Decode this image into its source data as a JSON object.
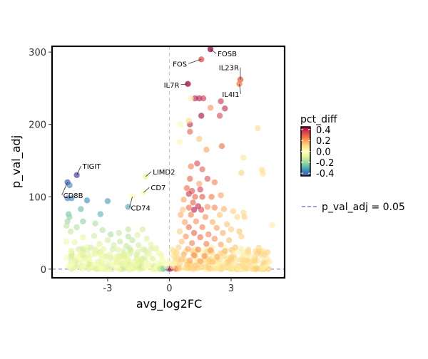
{
  "chart_data": {
    "type": "scatter",
    "title": "",
    "xlabel": "avg_log2FC",
    "ylabel": "p_val_adj",
    "xlim": [
      -5.7,
      5.6
    ],
    "ylim": [
      -12,
      308
    ],
    "xticks": [
      -3,
      0,
      3
    ],
    "xtick_labels": [
      "-3",
      "0",
      "3"
    ],
    "yticks": [
      0,
      100,
      200,
      300
    ],
    "ytick_labels": [
      "0",
      "100",
      "200",
      "300"
    ],
    "reference_lines": {
      "vertical_x": 0,
      "horizontal_y": 0
    },
    "grid": false,
    "color_by": "pct_diff",
    "colorbar": {
      "title": "pct_diff",
      "range": [
        -0.45,
        0.45
      ],
      "ticks": [
        0.4,
        0.2,
        0.0,
        -0.2,
        -0.4
      ],
      "tick_labels": [
        "0.4",
        "0.2",
        "0.0",
        "-0.2",
        "-0.4"
      ],
      "colors": [
        "#5e4fa2",
        "#3288bd",
        "#66c2a5",
        "#abdda4",
        "#e6f598",
        "#ffffbf",
        "#fee08b",
        "#fdae61",
        "#f46d43",
        "#d53e4f",
        "#9e0142"
      ]
    },
    "legend": {
      "position": "right",
      "entries": [
        {
          "label": "p_val_adj = 0.05",
          "style": "dashed",
          "color": "#8080dd"
        }
      ]
    },
    "labeled_points": [
      {
        "name": "FOSB",
        "x": 2.0,
        "y": 304,
        "c": 0.45
      },
      {
        "name": "FOS",
        "x": 1.55,
        "y": 290,
        "c": 0.32
      },
      {
        "name": "IL23R",
        "x": 3.45,
        "y": 262,
        "c": 0.3
      },
      {
        "name": "IL4I1",
        "x": 3.4,
        "y": 256,
        "c": 0.25
      },
      {
        "name": "IL7R",
        "x": 0.9,
        "y": 256,
        "c": 0.44
      },
      {
        "name": "TIGIT",
        "x": -4.5,
        "y": 130,
        "c": -0.45
      },
      {
        "name": "CD8B",
        "x": -4.95,
        "y": 120,
        "c": -0.4
      },
      {
        "name": "LIMD2",
        "x": -1.15,
        "y": 128,
        "c": -0.08
      },
      {
        "name": "CD7",
        "x": -1.25,
        "y": 106,
        "c": -0.02
      },
      {
        "name": "CD74",
        "x": -1.8,
        "y": 100,
        "c": -0.01
      }
    ],
    "points": [
      {
        "x": 1.25,
        "y": 236,
        "c": 0.42
      },
      {
        "x": 1.45,
        "y": 236,
        "c": 0.42
      },
      {
        "x": 1.65,
        "y": 236,
        "c": 0.38
      },
      {
        "x": 2.5,
        "y": 232,
        "c": 0.38
      },
      {
        "x": 2.7,
        "y": 222,
        "c": 0.4
      },
      {
        "x": 1.05,
        "y": 236,
        "c": 0.05
      },
      {
        "x": 2.0,
        "y": 223,
        "c": 0.22
      },
      {
        "x": 1.55,
        "y": 212,
        "c": 0.45
      },
      {
        "x": 2.45,
        "y": 212,
        "c": 0.35
      },
      {
        "x": 1.0,
        "y": 200,
        "c": 0.4
      },
      {
        "x": 0.95,
        "y": 205,
        "c": 0.1
      },
      {
        "x": 0.55,
        "y": 200,
        "c": 0.02
      },
      {
        "x": 1.0,
        "y": 190,
        "c": 0.3
      },
      {
        "x": 1.45,
        "y": 180,
        "c": 0.15
      },
      {
        "x": 2.55,
        "y": 170,
        "c": 0.28
      },
      {
        "x": 1.8,
        "y": 165,
        "c": 0.2
      },
      {
        "x": 0.5,
        "y": 176,
        "c": 0.03
      },
      {
        "x": 4.3,
        "y": 195,
        "c": 0.1
      },
      {
        "x": 3.6,
        "y": 154,
        "c": 0.08
      },
      {
        "x": 1.35,
        "y": 146,
        "c": 0.35
      },
      {
        "x": 1.05,
        "y": 142,
        "c": 0.25
      },
      {
        "x": 1.6,
        "y": 138,
        "c": 0.3
      },
      {
        "x": 1.0,
        "y": 125,
        "c": 0.3
      },
      {
        "x": 1.85,
        "y": 125,
        "c": 0.33
      },
      {
        "x": 2.2,
        "y": 120,
        "c": 0.25
      },
      {
        "x": 1.45,
        "y": 118,
        "c": 0.2
      },
      {
        "x": 3.5,
        "y": 133,
        "c": 0.12
      },
      {
        "x": 4.55,
        "y": 132,
        "c": 0.08
      },
      {
        "x": 4.5,
        "y": 137,
        "c": 0.1
      },
      {
        "x": 0.85,
        "y": 112,
        "c": 0.28
      },
      {
        "x": 1.1,
        "y": 108,
        "c": 0.34
      },
      {
        "x": 1.5,
        "y": 110,
        "c": 0.36
      },
      {
        "x": 0.95,
        "y": 104,
        "c": 0.38
      },
      {
        "x": 1.25,
        "y": 100,
        "c": 0.3
      },
      {
        "x": 1.6,
        "y": 100,
        "c": 0.32
      },
      {
        "x": 2.05,
        "y": 100,
        "c": 0.26
      },
      {
        "x": 2.5,
        "y": 102,
        "c": 0.2
      },
      {
        "x": 0.7,
        "y": 96,
        "c": 0.2
      },
      {
        "x": 1.15,
        "y": 92,
        "c": 0.3
      },
      {
        "x": 1.4,
        "y": 87,
        "c": 0.4
      },
      {
        "x": 1.2,
        "y": 82,
        "c": 0.42
      },
      {
        "x": 1.55,
        "y": 82,
        "c": 0.35
      },
      {
        "x": 0.95,
        "y": 85,
        "c": 0.28
      },
      {
        "x": 1.85,
        "y": 86,
        "c": 0.22
      },
      {
        "x": 2.2,
        "y": 85,
        "c": 0.24
      },
      {
        "x": 0.65,
        "y": 82,
        "c": 0.15
      },
      {
        "x": 2.65,
        "y": 83,
        "c": 0.18
      },
      {
        "x": 3.1,
        "y": 80,
        "c": 0.12
      },
      {
        "x": 3.6,
        "y": 78,
        "c": 0.1
      },
      {
        "x": 0.55,
        "y": 75,
        "c": 0.18
      },
      {
        "x": 1.05,
        "y": 75,
        "c": 0.25
      },
      {
        "x": 1.75,
        "y": 72,
        "c": 0.22
      },
      {
        "x": 2.45,
        "y": 75,
        "c": 0.15
      },
      {
        "x": 3.3,
        "y": 72,
        "c": 0.1
      },
      {
        "x": 3.65,
        "y": 72,
        "c": 0.12
      },
      {
        "x": 5.0,
        "y": 61,
        "c": 0.05
      },
      {
        "x": 0.75,
        "y": 65,
        "c": 0.2
      },
      {
        "x": 1.3,
        "y": 66,
        "c": 0.22
      },
      {
        "x": 2.1,
        "y": 65,
        "c": 0.18
      },
      {
        "x": 2.8,
        "y": 62,
        "c": 0.15
      },
      {
        "x": 0.95,
        "y": 58,
        "c": 0.28
      },
      {
        "x": 1.6,
        "y": 58,
        "c": 0.25
      },
      {
        "x": 2.3,
        "y": 57,
        "c": 0.2
      },
      {
        "x": 3.0,
        "y": 55,
        "c": 0.12
      },
      {
        "x": 3.4,
        "y": 52,
        "c": 0.15
      },
      {
        "x": 0.5,
        "y": 52,
        "c": 0.12
      },
      {
        "x": 1.2,
        "y": 50,
        "c": 0.3
      },
      {
        "x": 1.9,
        "y": 48,
        "c": 0.25
      },
      {
        "x": 2.6,
        "y": 50,
        "c": 0.18
      },
      {
        "x": 0.8,
        "y": 45,
        "c": 0.22
      },
      {
        "x": 1.5,
        "y": 44,
        "c": 0.28
      },
      {
        "x": 2.2,
        "y": 42,
        "c": 0.22
      },
      {
        "x": 2.9,
        "y": 40,
        "c": 0.16
      },
      {
        "x": 3.5,
        "y": 45,
        "c": 0.12
      },
      {
        "x": 0.6,
        "y": 38,
        "c": 0.15
      },
      {
        "x": 1.1,
        "y": 36,
        "c": 0.25
      },
      {
        "x": 1.8,
        "y": 35,
        "c": 0.26
      },
      {
        "x": 2.5,
        "y": 34,
        "c": 0.2
      },
      {
        "x": 3.2,
        "y": 30,
        "c": 0.14
      },
      {
        "x": 0.45,
        "y": 30,
        "c": 0.12
      },
      {
        "x": 0.9,
        "y": 28,
        "c": 0.2
      },
      {
        "x": 1.4,
        "y": 27,
        "c": 0.25
      },
      {
        "x": 2.0,
        "y": 26,
        "c": 0.22
      },
      {
        "x": 2.7,
        "y": 25,
        "c": 0.18
      },
      {
        "x": 3.8,
        "y": 24,
        "c": 0.1
      },
      {
        "x": 0.35,
        "y": 22,
        "c": 0.1
      },
      {
        "x": 0.7,
        "y": 20,
        "c": 0.18
      },
      {
        "x": 1.2,
        "y": 19,
        "c": 0.24
      },
      {
        "x": 1.7,
        "y": 18,
        "c": 0.22
      },
      {
        "x": 2.3,
        "y": 17,
        "c": 0.18
      },
      {
        "x": 3.0,
        "y": 16,
        "c": 0.12
      },
      {
        "x": 0.3,
        "y": 14,
        "c": 0.08
      },
      {
        "x": 0.6,
        "y": 13,
        "c": 0.15
      },
      {
        "x": 1.0,
        "y": 12,
        "c": 0.2
      },
      {
        "x": 1.5,
        "y": 11,
        "c": 0.2
      },
      {
        "x": 2.1,
        "y": 10,
        "c": 0.16
      },
      {
        "x": 2.8,
        "y": 9,
        "c": 0.12
      },
      {
        "x": 0.25,
        "y": 8,
        "c": 0.06
      },
      {
        "x": 0.5,
        "y": 7,
        "c": 0.12
      },
      {
        "x": 0.85,
        "y": 6,
        "c": 0.15
      },
      {
        "x": 1.3,
        "y": 5,
        "c": 0.15
      },
      {
        "x": 1.9,
        "y": 5,
        "c": 0.12
      },
      {
        "x": 2.6,
        "y": 4,
        "c": 0.1
      },
      {
        "x": 0.2,
        "y": 3,
        "c": 0.05
      },
      {
        "x": 0.45,
        "y": 2,
        "c": 0.08
      },
      {
        "x": 0.8,
        "y": 2,
        "c": 0.1
      },
      {
        "x": 1.2,
        "y": 1.5,
        "c": 0.12
      },
      {
        "x": 3.6,
        "y": 6,
        "c": 0.08
      },
      {
        "x": -4.95,
        "y": 98,
        "c": -0.4
      },
      {
        "x": -4.75,
        "y": 98,
        "c": -0.38
      },
      {
        "x": -4.85,
        "y": 116,
        "c": -0.38
      },
      {
        "x": -4.0,
        "y": 95,
        "c": -0.36
      },
      {
        "x": -3.0,
        "y": 94,
        "c": -0.34
      },
      {
        "x": -2.0,
        "y": 86,
        "c": -0.32
      },
      {
        "x": -4.3,
        "y": 83,
        "c": -0.28
      },
      {
        "x": -4.9,
        "y": 76,
        "c": -0.25
      },
      {
        "x": -4.85,
        "y": 72,
        "c": -0.22
      },
      {
        "x": -4.95,
        "y": 66,
        "c": -0.2
      },
      {
        "x": -4.2,
        "y": 66,
        "c": -0.22
      },
      {
        "x": -3.35,
        "y": 76,
        "c": -0.3
      },
      {
        "x": -3.6,
        "y": 63,
        "c": -0.18
      },
      {
        "x": -2.0,
        "y": 55,
        "c": -0.15
      },
      {
        "x": -1.3,
        "y": 55,
        "c": -0.12
      },
      {
        "x": -5.0,
        "y": 60,
        "c": -0.15
      },
      {
        "x": -4.5,
        "y": 58,
        "c": -0.17
      },
      {
        "x": -3.25,
        "y": 54,
        "c": -0.16
      },
      {
        "x": -2.45,
        "y": 50,
        "c": -0.14
      },
      {
        "x": -2.85,
        "y": 48,
        "c": -0.18
      },
      {
        "x": -4.8,
        "y": 52,
        "c": -0.14
      },
      {
        "x": -3.65,
        "y": 46,
        "c": -0.12
      },
      {
        "x": -2.0,
        "y": 45,
        "c": -0.16
      },
      {
        "x": -1.55,
        "y": 47,
        "c": -0.1
      },
      {
        "x": -4.2,
        "y": 44,
        "c": -0.08
      },
      {
        "x": -3.0,
        "y": 40,
        "c": -0.12
      },
      {
        "x": -2.4,
        "y": 38,
        "c": -0.14
      },
      {
        "x": -1.8,
        "y": 40,
        "c": -0.15
      },
      {
        "x": -1.1,
        "y": 42,
        "c": -0.1
      },
      {
        "x": -5.0,
        "y": 38,
        "c": -0.05
      },
      {
        "x": -4.6,
        "y": 37,
        "c": -0.07
      },
      {
        "x": -3.4,
        "y": 35,
        "c": -0.1
      },
      {
        "x": -2.7,
        "y": 33,
        "c": -0.12
      },
      {
        "x": -2.1,
        "y": 32,
        "c": -0.14
      },
      {
        "x": -1.5,
        "y": 33,
        "c": -0.12
      },
      {
        "x": -0.9,
        "y": 34,
        "c": -0.08
      },
      {
        "x": -4.0,
        "y": 30,
        "c": -0.06
      },
      {
        "x": -3.2,
        "y": 28,
        "c": -0.08
      },
      {
        "x": -2.5,
        "y": 27,
        "c": -0.1
      },
      {
        "x": -1.9,
        "y": 26,
        "c": -0.12
      },
      {
        "x": -1.3,
        "y": 27,
        "c": -0.1
      },
      {
        "x": -0.7,
        "y": 28,
        "c": -0.06
      },
      {
        "x": -4.8,
        "y": 25,
        "c": -0.04
      },
      {
        "x": -4.3,
        "y": 22,
        "c": -0.05
      },
      {
        "x": -3.6,
        "y": 21,
        "c": -0.07
      },
      {
        "x": -2.9,
        "y": 20,
        "c": -0.08
      },
      {
        "x": -2.2,
        "y": 19,
        "c": -0.1
      },
      {
        "x": -1.6,
        "y": 20,
        "c": -0.11
      },
      {
        "x": -1.0,
        "y": 21,
        "c": -0.09
      },
      {
        "x": -0.5,
        "y": 22,
        "c": -0.05
      },
      {
        "x": -5.0,
        "y": 16,
        "c": -0.03
      },
      {
        "x": -4.5,
        "y": 15,
        "c": -0.03
      },
      {
        "x": -3.9,
        "y": 14,
        "c": -0.04
      },
      {
        "x": -3.3,
        "y": 14,
        "c": -0.05
      },
      {
        "x": -2.6,
        "y": 13,
        "c": -0.07
      },
      {
        "x": -2.0,
        "y": 13,
        "c": -0.08
      },
      {
        "x": -1.4,
        "y": 13,
        "c": -0.08
      },
      {
        "x": -0.8,
        "y": 14,
        "c": -0.06
      },
      {
        "x": -0.35,
        "y": 15,
        "c": -0.04
      },
      {
        "x": -4.7,
        "y": 9,
        "c": -0.02
      },
      {
        "x": -4.1,
        "y": 8,
        "c": -0.02
      },
      {
        "x": -3.5,
        "y": 8,
        "c": -0.03
      },
      {
        "x": -2.8,
        "y": 7,
        "c": -0.04
      },
      {
        "x": -2.2,
        "y": 7,
        "c": -0.05
      },
      {
        "x": -1.6,
        "y": 7,
        "c": -0.06
      },
      {
        "x": -1.0,
        "y": 7,
        "c": -0.05
      },
      {
        "x": -0.55,
        "y": 8,
        "c": -0.04
      },
      {
        "x": -0.25,
        "y": 9,
        "c": -0.02
      },
      {
        "x": -4.9,
        "y": 4,
        "c": -0.01
      },
      {
        "x": -4.2,
        "y": 3,
        "c": -0.01
      },
      {
        "x": -3.4,
        "y": 3,
        "c": -0.02
      },
      {
        "x": -2.6,
        "y": 3,
        "c": -0.03
      },
      {
        "x": -1.9,
        "y": 3,
        "c": -0.03
      },
      {
        "x": -1.2,
        "y": 3,
        "c": -0.03
      },
      {
        "x": -0.6,
        "y": 3,
        "c": -0.02
      },
      {
        "x": -0.2,
        "y": 2,
        "c": -0.01
      },
      {
        "x": -0.1,
        "y": 1,
        "c": -0.05
      },
      {
        "x": 0.1,
        "y": 1,
        "c": 0.05
      },
      {
        "x": -0.3,
        "y": 0.5,
        "c": -0.3
      },
      {
        "x": 0.3,
        "y": 0.5,
        "c": 0.3
      },
      {
        "x": -0.05,
        "y": 0.5,
        "c": -0.45
      },
      {
        "x": 0.05,
        "y": 0.5,
        "c": 0.45
      },
      {
        "x": -0.45,
        "y": 1,
        "c": -0.15
      },
      {
        "x": 0.45,
        "y": 1,
        "c": 0.15
      },
      {
        "x": -0.15,
        "y": 4,
        "c": 0.0
      },
      {
        "x": 0.15,
        "y": 4,
        "c": 0.02
      }
    ]
  }
}
